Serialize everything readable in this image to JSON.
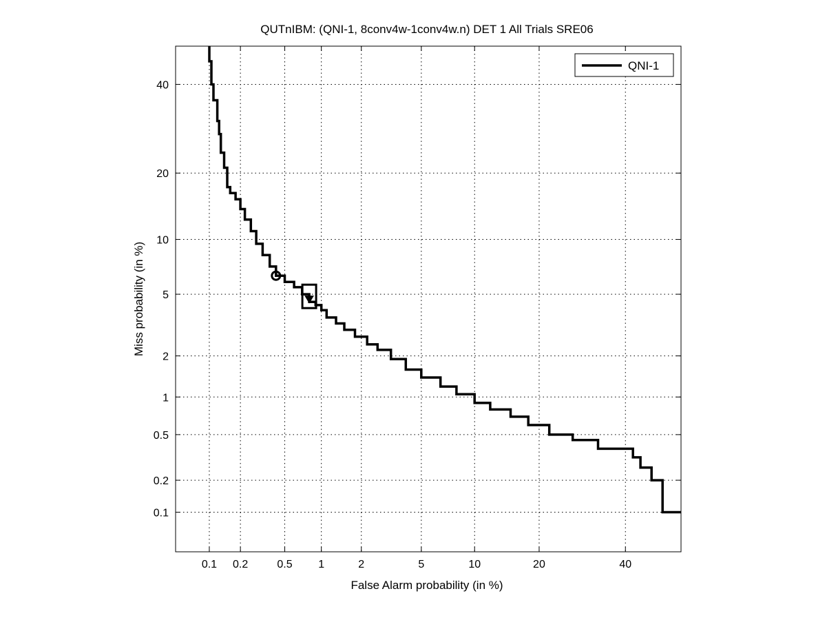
{
  "chart_data": {
    "type": "line",
    "title": "QUTnIBM: (QNI-1, 8conv4w-1conv4w.n) DET 1 All Trials SRE06",
    "xlabel": "False Alarm probability (in %)",
    "ylabel": "Miss probability (in %)",
    "x_scale": "probit",
    "y_scale": "probit",
    "xlim": [
      0.045,
      55
    ],
    "ylim": [
      0.04,
      50
    ],
    "grid": true,
    "legend_position": "top-right",
    "x_ticks": [
      0.1,
      0.2,
      0.5,
      1,
      2,
      5,
      10,
      20,
      40
    ],
    "x_tick_labels": [
      "0.1",
      "0.2",
      "0.5",
      "1",
      "2",
      "5",
      "10",
      "20",
      "40"
    ],
    "y_ticks": [
      0.1,
      0.2,
      0.5,
      1,
      2,
      5,
      10,
      20,
      40
    ],
    "y_tick_labels": [
      "0.1",
      "0.2",
      "0.5",
      "1",
      "2",
      "5",
      "10",
      "20",
      "40"
    ],
    "series": [
      {
        "name": "QNI-1",
        "color": "#000000",
        "x": [
          0.1,
          0.1,
          0.105,
          0.105,
          0.11,
          0.11,
          0.12,
          0.12,
          0.125,
          0.125,
          0.13,
          0.13,
          0.14,
          0.14,
          0.15,
          0.15,
          0.16,
          0.16,
          0.18,
          0.18,
          0.2,
          0.2,
          0.22,
          0.22,
          0.25,
          0.25,
          0.28,
          0.28,
          0.32,
          0.32,
          0.37,
          0.37,
          0.42,
          0.42,
          0.5,
          0.5,
          0.6,
          0.6,
          0.7,
          0.7,
          0.8,
          0.8,
          0.9,
          0.9,
          1.0,
          1.0,
          1.1,
          1.1,
          1.3,
          1.3,
          1.5,
          1.5,
          1.8,
          1.8,
          2.2,
          2.2,
          2.6,
          2.6,
          3.2,
          3.2,
          4.0,
          4.0,
          5.0,
          5.0,
          6.5,
          6.5,
          8.0,
          8.0,
          10.0,
          10.0,
          12.0,
          12.0,
          15.0,
          15.0,
          18.0,
          18.0,
          22.0,
          22.0,
          27.0,
          27.0,
          33.0,
          33.0,
          42.0,
          42.0,
          44.0,
          44.0,
          47.0,
          47.0,
          50.0,
          50.0,
          55.0
        ],
        "y": [
          50,
          46,
          46,
          40,
          40,
          36,
          36,
          31,
          31,
          28,
          28,
          24,
          24,
          21,
          21,
          17.5,
          17.5,
          16.5,
          16.5,
          15.5,
          15.5,
          14,
          14,
          12.5,
          12.5,
          11,
          11,
          9.5,
          9.5,
          8.3,
          8.3,
          7.2,
          7.2,
          6.4,
          6.4,
          5.9,
          5.9,
          5.5,
          5.5,
          5.0,
          5.0,
          4.5,
          4.5,
          4.3,
          4.3,
          4.0,
          4.0,
          3.6,
          3.6,
          3.3,
          3.3,
          3.0,
          3.0,
          2.7,
          2.7,
          2.4,
          2.4,
          2.2,
          2.2,
          1.9,
          1.9,
          1.6,
          1.6,
          1.4,
          1.4,
          1.2,
          1.2,
          1.05,
          1.05,
          0.9,
          0.9,
          0.8,
          0.8,
          0.7,
          0.7,
          0.6,
          0.6,
          0.5,
          0.5,
          0.45,
          0.45,
          0.38,
          0.38,
          0.32,
          0.32,
          0.26,
          0.26,
          0.2,
          0.2,
          0.1,
          0.1
        ]
      }
    ],
    "markers": [
      {
        "kind": "circle",
        "x": 0.42,
        "y": 6.4
      },
      {
        "kind": "square",
        "x": 0.8,
        "y": 4.9
      },
      {
        "kind": "triangle-down",
        "x": 0.8,
        "y": 4.7
      }
    ]
  }
}
